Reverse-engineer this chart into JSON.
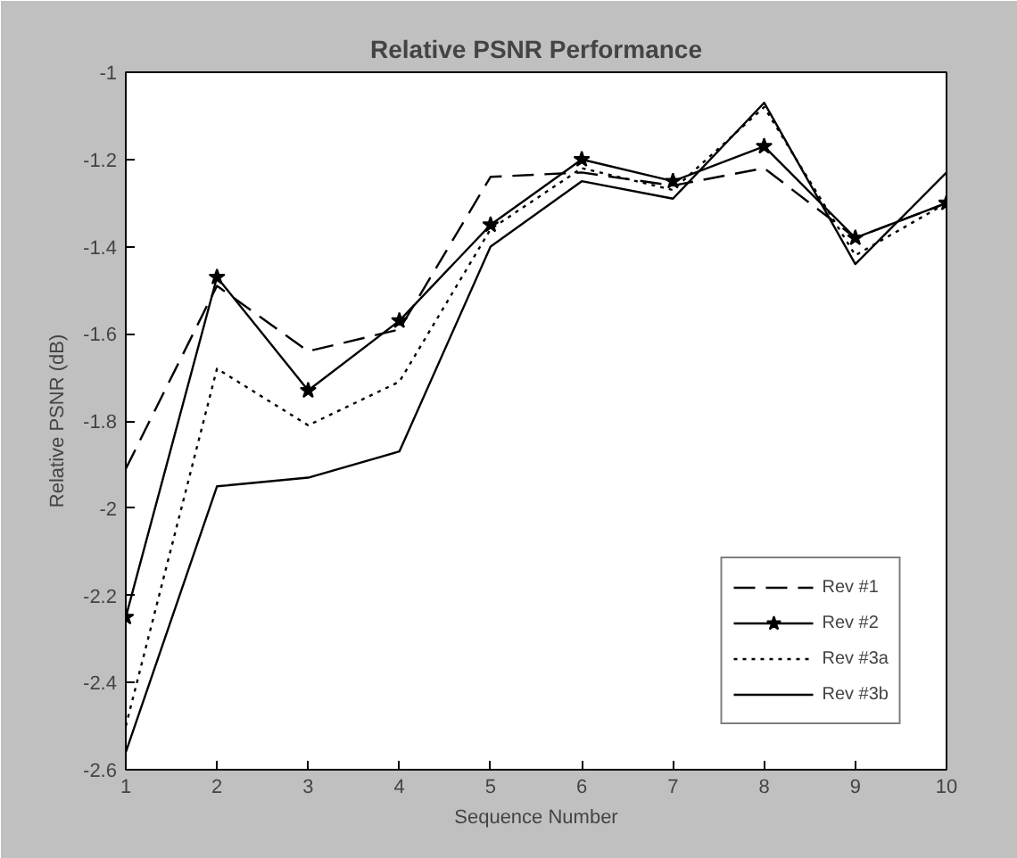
{
  "chart_data": {
    "type": "line",
    "title": "Relative PSNR Performance",
    "xlabel": "Sequence Number",
    "ylabel": "Relative PSNR (dB)",
    "x": [
      1,
      2,
      3,
      4,
      5,
      6,
      7,
      8,
      9,
      10
    ],
    "xlim": [
      1,
      10
    ],
    "xticks": [
      1,
      2,
      3,
      4,
      5,
      6,
      7,
      8,
      9,
      10
    ],
    "ylim": [
      -2.6,
      -1
    ],
    "yticks": [
      -2.6,
      -2.4,
      -2.2,
      -2,
      -1.8,
      -1.6,
      -1.4,
      -1.2,
      -1
    ],
    "grid": false,
    "legend": "bottom right",
    "series": [
      {
        "name": "Rev #1",
        "color": "#000000",
        "line_style": "dashed",
        "marker": "none",
        "values": [
          -1.91,
          -1.49,
          -1.64,
          -1.59,
          -1.24,
          -1.23,
          -1.26,
          -1.22,
          -1.38,
          -1.3
        ]
      },
      {
        "name": "Rev #2",
        "color": "#000000",
        "line_style": "solid",
        "marker": "star",
        "values": [
          -2.25,
          -1.47,
          -1.73,
          -1.57,
          -1.35,
          -1.2,
          -1.25,
          -1.17,
          -1.38,
          -1.3
        ]
      },
      {
        "name": "Rev #3a",
        "color": "#000000",
        "line_style": "dotted",
        "marker": "none",
        "values": [
          -2.5,
          -1.68,
          -1.81,
          -1.71,
          -1.36,
          -1.22,
          -1.27,
          -1.08,
          -1.42,
          -1.3
        ]
      },
      {
        "name": "Rev #3b",
        "color": "#000000",
        "line_style": "solid",
        "marker": "none",
        "values": [
          -2.56,
          -1.95,
          -1.93,
          -1.87,
          -1.4,
          -1.25,
          -1.29,
          -1.07,
          -1.44,
          -1.23
        ]
      }
    ]
  }
}
